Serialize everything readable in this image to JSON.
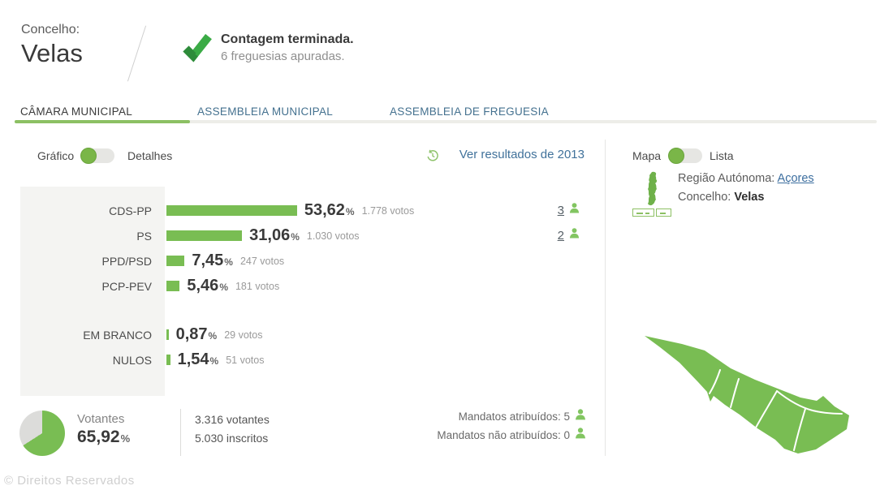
{
  "header": {
    "region_label": "Concelho:",
    "region_name": "Velas",
    "status_title": "Contagem terminada.",
    "status_subtitle": "6 freguesias apuradas."
  },
  "tabs": [
    {
      "label": "CÂMARA MUNICIPAL",
      "active": true
    },
    {
      "label": "ASSEMBLEIA MUNICIPAL",
      "active": false
    },
    {
      "label": "ASSEMBLEIA DE FREGUESIA",
      "active": false
    }
  ],
  "controls": {
    "view_toggle_left": "Gráfico",
    "view_toggle_right": "Detalhes",
    "history_link": "Ver resultados de 2013"
  },
  "chart_data": {
    "type": "bar",
    "orientation": "horizontal",
    "xlabel": "",
    "ylabel": "",
    "xlim": [
      0,
      60
    ],
    "percent_sign": "%",
    "rows": [
      {
        "label": "CDS-PP",
        "pct": 53.62,
        "pct_display": "53,62",
        "votes": 1778,
        "votes_display": "1.778 votos",
        "mandates": "3",
        "gap_before": false
      },
      {
        "label": "PS",
        "pct": 31.06,
        "pct_display": "31,06",
        "votes": 1030,
        "votes_display": "1.030 votos",
        "mandates": "2",
        "gap_before": false
      },
      {
        "label": "PPD/PSD",
        "pct": 7.45,
        "pct_display": "7,45",
        "votes": 247,
        "votes_display": "247 votos",
        "mandates": null,
        "gap_before": false
      },
      {
        "label": "PCP-PEV",
        "pct": 5.46,
        "pct_display": "5,46",
        "votes": 181,
        "votes_display": "181 votos",
        "mandates": null,
        "gap_before": false
      },
      {
        "label": "EM BRANCO",
        "pct": 0.87,
        "pct_display": "0,87",
        "votes": 29,
        "votes_display": "29 votos",
        "mandates": null,
        "gap_before": true
      },
      {
        "label": "NULOS",
        "pct": 1.54,
        "pct_display": "1,54",
        "votes": 51,
        "votes_display": "51 votos",
        "mandates": null,
        "gap_before": false
      }
    ]
  },
  "summary": {
    "turnout_label": "Votantes",
    "turnout_pct": 65.92,
    "turnout_pct_display": "65,92",
    "percent_sign": "%",
    "voters_line": "3.316 votantes",
    "registered_line": "5.030 inscritos",
    "mandates_assigned_label": "Mandatos atribuídos: 5",
    "mandates_unassigned_label": "Mandatos não atribuídos: 0"
  },
  "map_panel": {
    "toggle_left": "Mapa",
    "toggle_right": "Lista",
    "region_label": "Região Autónoma:",
    "region_link": "Açores",
    "concelho_label": "Concelho:",
    "concelho_value": "Velas"
  },
  "footer": {
    "copyright": "© Direitos Reservados"
  },
  "colors": {
    "accent_green": "#79bd53",
    "dark_green": "#2e8b3a",
    "link_blue": "#41729b",
    "tab_inactive": "#44718f",
    "text_dark": "#3a3a3a",
    "text_gray": "#9a9a9a"
  }
}
